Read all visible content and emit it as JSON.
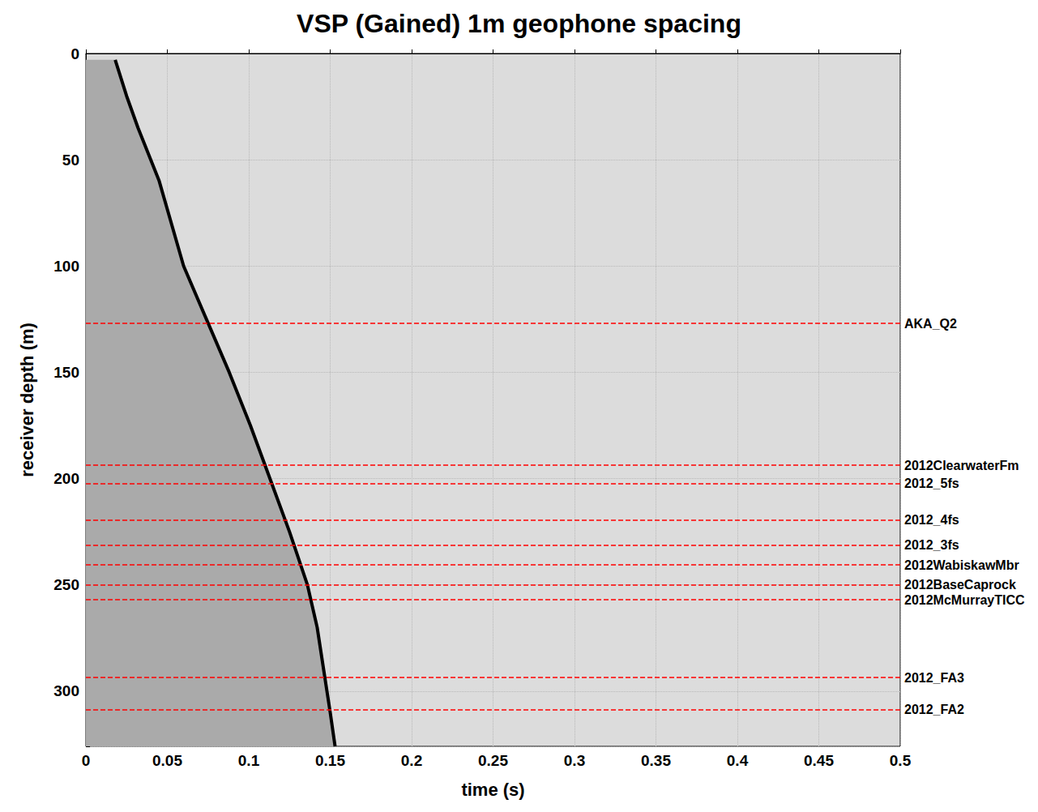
{
  "chart_data": {
    "type": "line",
    "title": "VSP (Gained) 1m geophone spacing",
    "x_label": "time (s)",
    "y_label": "receiver depth (m)",
    "x": [
      0.018,
      0.025,
      0.032,
      0.045,
      0.06,
      0.074,
      0.088,
      0.101,
      0.113,
      0.125,
      0.136,
      0.142,
      0.146,
      0.15,
      0.153
    ],
    "values": [
      3,
      20,
      35,
      60,
      100,
      125,
      150,
      175,
      200,
      225,
      250,
      270,
      290,
      310,
      326
    ],
    "color": "#000000",
    "xlim": [
      0,
      0.5
    ],
    "xticks": [
      0,
      0.05,
      0.1,
      0.15,
      0.2,
      0.25,
      0.3,
      0.35,
      0.4,
      0.45,
      0.5
    ],
    "ylim": [
      0,
      326
    ],
    "yticks": [
      0,
      50,
      100,
      150,
      200,
      250,
      300
    ],
    "grid": true,
    "annotations": [
      {
        "label": "AKA_Q2",
        "y": 127,
        "color": "#ff0000",
        "line_style": "dashed"
      },
      {
        "label": "2012ClearwaterFm",
        "y": 193.7,
        "color": "#ff0000",
        "line_style": "dashed"
      },
      {
        "label": "2012_5fs",
        "y": 202.4,
        "color": "#ff0000",
        "line_style": "dashed"
      },
      {
        "label": "2012_4fs",
        "y": 219.6,
        "color": "#ff0000",
        "line_style": "dashed"
      },
      {
        "label": "2012_3fs",
        "y": 231.4,
        "color": "#ff0000",
        "line_style": "dashed"
      },
      {
        "label": "2012WabiskawMbr",
        "y": 240.6,
        "color": "#ff0000",
        "line_style": "dashed"
      },
      {
        "label": "2012BaseCaprock",
        "y": 250.1,
        "color": "#ff0000",
        "line_style": "dashed"
      },
      {
        "label": "2012McMurrayTICC",
        "y": 257,
        "color": "#ff0000",
        "line_style": "dashed"
      },
      {
        "label": "2012_FA3",
        "y": 293.6,
        "color": "#ff0000",
        "line_style": "dashed"
      },
      {
        "label": "2012_FA2",
        "y": 308.8,
        "color": "#ff0000",
        "line_style": "dashed"
      }
    ]
  }
}
